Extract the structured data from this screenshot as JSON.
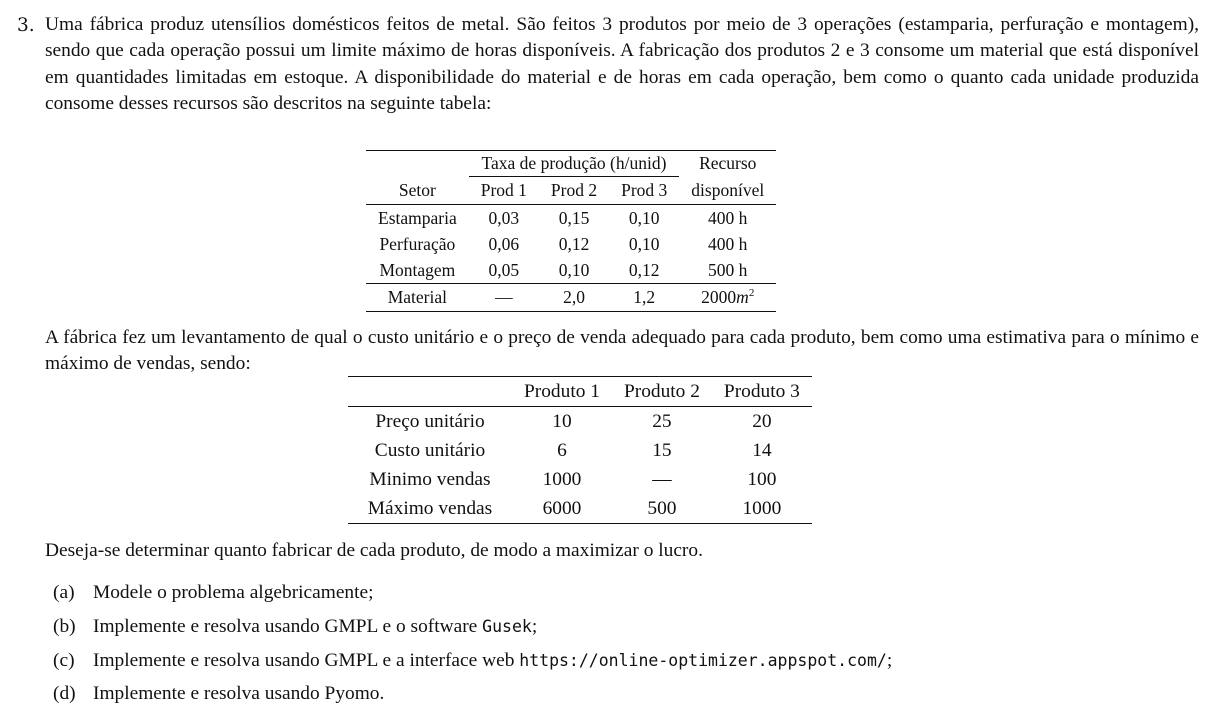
{
  "problem": {
    "number": "3.",
    "intro": "Uma fábrica produz utensílios domésticos feitos de metal. São feitos 3 produtos por meio de 3 operações (estamparia, perfuração e montagem), sendo que cada operação possui um limite máximo de horas disponíveis. A fabricação dos produtos 2 e 3 consome um material que está disponível em quantidades limitadas em estoque. A disponibilidade do material e de horas em cada operação, bem como o quanto cada unidade produzida consome desses recursos são descritos na seguinte tabela:",
    "table1": {
      "group_header": "Taxa de produção (h/unid)",
      "resource_header_line1": "Recurso",
      "resource_header_line2": "disponível",
      "sector_header": "Setor",
      "product_headers": [
        "Prod 1",
        "Prod 2",
        "Prod 3"
      ],
      "rows": [
        {
          "setor": "Estamparia",
          "p1": "0,03",
          "p2": "0,15",
          "p3": "0,10",
          "recurso": "400 h"
        },
        {
          "setor": "Perfuração",
          "p1": "0,06",
          "p2": "0,12",
          "p3": "0,10",
          "recurso": "400 h"
        },
        {
          "setor": "Montagem",
          "p1": "0,05",
          "p2": "0,10",
          "p3": "0,12",
          "recurso": "500 h"
        }
      ],
      "material_row": {
        "setor": "Material",
        "p1": "—",
        "p2": "2,0",
        "p3": "1,2",
        "recurso_number": "2000",
        "recurso_unit": "m",
        "recurso_exp": "2"
      }
    },
    "middle": "A fábrica fez um levantamento de qual o custo unitário e o preço de venda adequado para cada produto, bem como uma estimativa para o mínimo e máximo de vendas, sendo:",
    "table2": {
      "headers": [
        "",
        "Produto 1",
        "Produto 2",
        "Produto 3"
      ],
      "rows": [
        [
          "Preço unitário",
          "10",
          "25",
          "20"
        ],
        [
          "Custo unitário",
          "6",
          "15",
          "14"
        ],
        [
          "Minimo vendas",
          "1000",
          "—",
          "100"
        ],
        [
          "Máximo vendas",
          "6000",
          "500",
          "1000"
        ]
      ]
    },
    "goal": "Deseja-se determinar quanto fabricar de cada produto, de modo a maximizar o lucro.",
    "items": [
      {
        "marker": "(a)",
        "pre": "Modele o problema algebricamente;",
        "code": "",
        "post": ""
      },
      {
        "marker": "(b)",
        "pre": "Implemente e resolva usando GMPL e o software ",
        "code": "Gusek",
        "post": ";"
      },
      {
        "marker": "(c)",
        "pre": "Implemente e resolva usando GMPL e a interface web ",
        "code": "https://online-optimizer.appspot.com/",
        "post": ";"
      },
      {
        "marker": "(d)",
        "pre": "Implemente e resolva usando Pyomo.",
        "code": "",
        "post": ""
      }
    ]
  }
}
